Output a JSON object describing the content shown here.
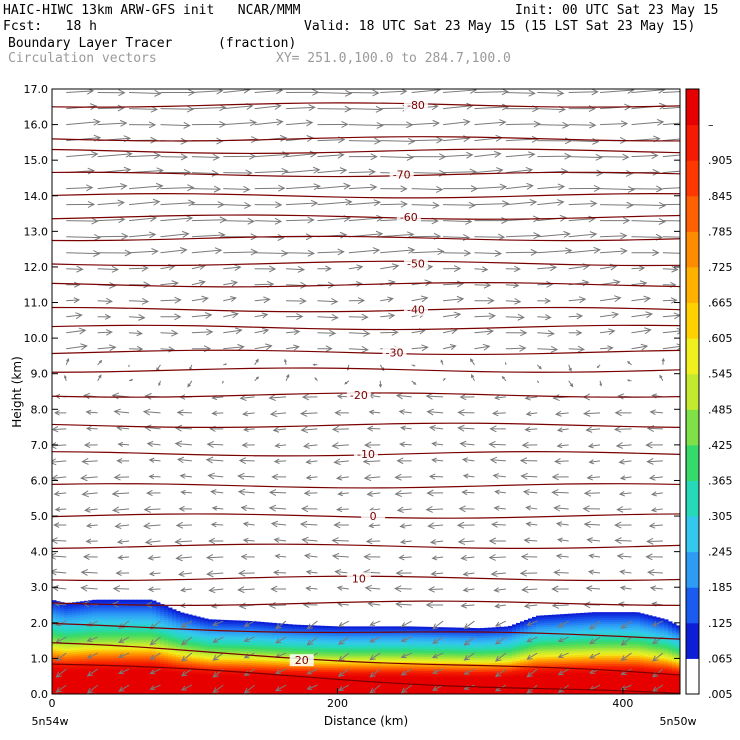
{
  "header": {
    "model_line": "HAIC-HIWC 13km ARW-GFS init   NCAR/MMM",
    "init_line": "Init: 00 UTC Sat 23 May 15",
    "fcst_line": "Fcst:   18 h",
    "valid_line": "Valid: 18 UTC Sat 23 May 15 (15 LST Sat 23 May 15)",
    "field_name": "Boundary Layer Tracer",
    "field_units": "(fraction)",
    "vector_name": "Circulation vectors",
    "xsec_line": "XY= 251.0,100.0 to 284.7,100.0"
  },
  "chart_data": {
    "type": "heatmap",
    "title": "Boundary Layer Tracer (fraction)",
    "xlabel": "Distance (km)",
    "ylabel": "Height (km)",
    "xlim": [
      0,
      440
    ],
    "ylim": [
      0,
      17
    ],
    "x_ticks": [
      "0",
      "200",
      "400"
    ],
    "x_tick_values": [
      0,
      200,
      400
    ],
    "x_end_labels": [
      "5n54w",
      "5n50w"
    ],
    "y_ticks": [
      "0.0",
      "1.0",
      "2.0",
      "3.0",
      "4.0",
      "5.0",
      "6.0",
      "7.0",
      "8.0",
      "9.0",
      "10.0",
      "11.0",
      "12.0",
      "13.0",
      "14.0",
      "15.0",
      "16.0",
      "17.0"
    ],
    "y_tick_values": [
      0,
      1,
      2,
      3,
      4,
      5,
      6,
      7,
      8,
      9,
      10,
      11,
      12,
      13,
      14,
      15,
      16,
      17
    ],
    "colorbar": {
      "labels": [
        ".005",
        ".065",
        ".125",
        ".185",
        ".245",
        ".305",
        ".365",
        ".425",
        ".485",
        ".545",
        ".605",
        ".665",
        ".725",
        ".785",
        ".845",
        ".905",
        "–"
      ],
      "colors": [
        "#ffffff",
        "#0c1fd6",
        "#1a5cf0",
        "#2d9cf5",
        "#34c8ee",
        "#25d9b9",
        "#35da6a",
        "#7fe048",
        "#c4ea30",
        "#f0f020",
        "#ffd100",
        "#ffb000",
        "#ff8c00",
        "#ff6000",
        "#ff3800",
        "#f51a00",
        "#e60000"
      ]
    },
    "tracer_top_km": [
      [
        0,
        2.65
      ],
      [
        10,
        2.55
      ],
      [
        30,
        2.65
      ],
      [
        70,
        2.65
      ],
      [
        90,
        2.3
      ],
      [
        110,
        2.1
      ],
      [
        140,
        2.05
      ],
      [
        170,
        1.95
      ],
      [
        200,
        1.9
      ],
      [
        250,
        1.9
      ],
      [
        300,
        1.85
      ],
      [
        320,
        1.9
      ],
      [
        340,
        2.2
      ],
      [
        380,
        2.3
      ],
      [
        410,
        2.3
      ],
      [
        430,
        2.1
      ],
      [
        440,
        1.9
      ]
    ],
    "temperature_contours": {
      "units": "deg C",
      "labeled": [
        {
          "label": "20",
          "x_km": 175,
          "height_km": 0.95
        },
        {
          "label": "10",
          "x_km": 215,
          "height_km": 3.25
        },
        {
          "label": "0",
          "x_km": 225,
          "height_km": 5.0
        },
        {
          "label": "-10",
          "x_km": 220,
          "height_km": 6.75
        },
        {
          "label": "-20",
          "x_km": 215,
          "height_km": 8.4
        },
        {
          "label": "-30",
          "x_km": 240,
          "height_km": 9.6
        },
        {
          "label": "-40",
          "x_km": 255,
          "height_km": 10.8
        },
        {
          "label": "-50",
          "x_km": 255,
          "height_km": 12.1
        },
        {
          "label": "-60",
          "x_km": 250,
          "height_km": 13.4
        },
        {
          "label": "-70",
          "x_km": 245,
          "height_km": 14.6
        },
        {
          "label": "-80",
          "x_km": 255,
          "height_km": 16.55
        }
      ],
      "line_heights_km": [
        0.4,
        0.95,
        1.75,
        2.55,
        3.25,
        4.15,
        5.0,
        5.85,
        6.75,
        7.55,
        8.4,
        9.1,
        9.6,
        10.3,
        10.8,
        11.5,
        12.1,
        12.8,
        13.4,
        14.0,
        14.6,
        15.25,
        15.6,
        16.55
      ]
    },
    "wind_vectors": {
      "description": "circulation vectors",
      "bands": [
        {
          "from_km": 12.0,
          "to_km": 17.0,
          "direction": "east",
          "speed": 1.0
        },
        {
          "from_km": 9.5,
          "to_km": 12.0,
          "direction": "east",
          "speed": 0.55
        },
        {
          "from_km": 8.5,
          "to_km": 9.5,
          "direction": "weak",
          "speed": 0.2
        },
        {
          "from_km": 2.5,
          "to_km": 8.5,
          "direction": "west",
          "speed": 0.45
        },
        {
          "from_km": 0.1,
          "to_km": 2.5,
          "direction": "west-down",
          "speed": 0.4
        }
      ]
    }
  }
}
